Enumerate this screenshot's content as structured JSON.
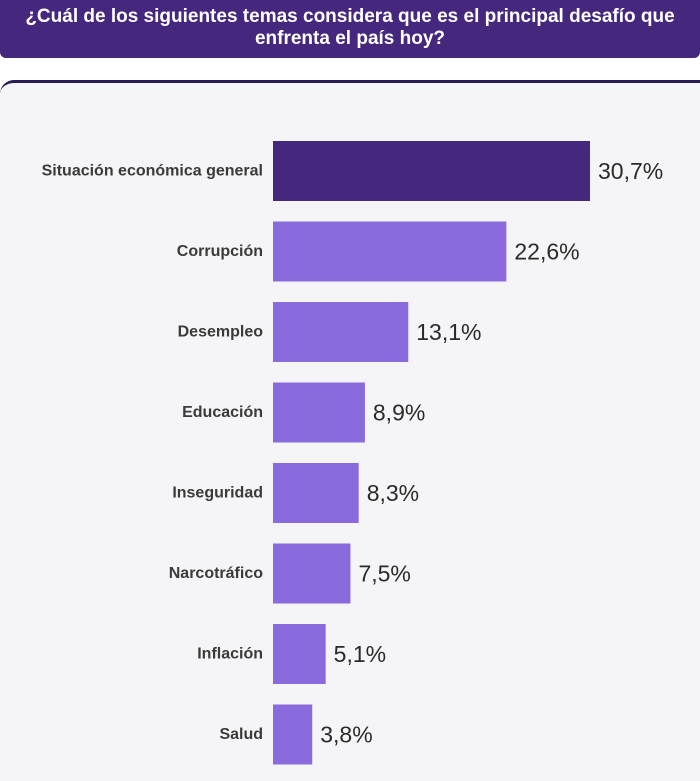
{
  "header": {
    "title": "¿Cuál de los siguientes temas considera que es el principal desafío que enfrenta el país hoy?"
  },
  "colors": {
    "header_bg": "#45287e",
    "highlight_bar": "#45287e",
    "bar": "#8a6bdd",
    "card_bg": "#f5f5f7"
  },
  "chart_data": {
    "type": "bar",
    "orientation": "horizontal",
    "title": "¿Cuál de los siguientes temas considera que es el principal desafío que enfrenta el país hoy?",
    "categories": [
      "Situación económica general",
      "Corrupción",
      "Desempleo",
      "Educación",
      "Inseguridad",
      "Narcotráfico",
      "Inflación",
      "Salud"
    ],
    "values": [
      30.7,
      22.6,
      13.1,
      8.9,
      8.3,
      7.5,
      5.1,
      3.8
    ],
    "value_labels": [
      "30,7%",
      "22,6%",
      "13,1%",
      "8,9%",
      "8,3%",
      "7,5%",
      "5,1%",
      "3,8%"
    ],
    "unit": "%",
    "highlight_index": 0,
    "xlim": [
      0,
      30.7
    ],
    "grid": false,
    "legend": "none"
  }
}
